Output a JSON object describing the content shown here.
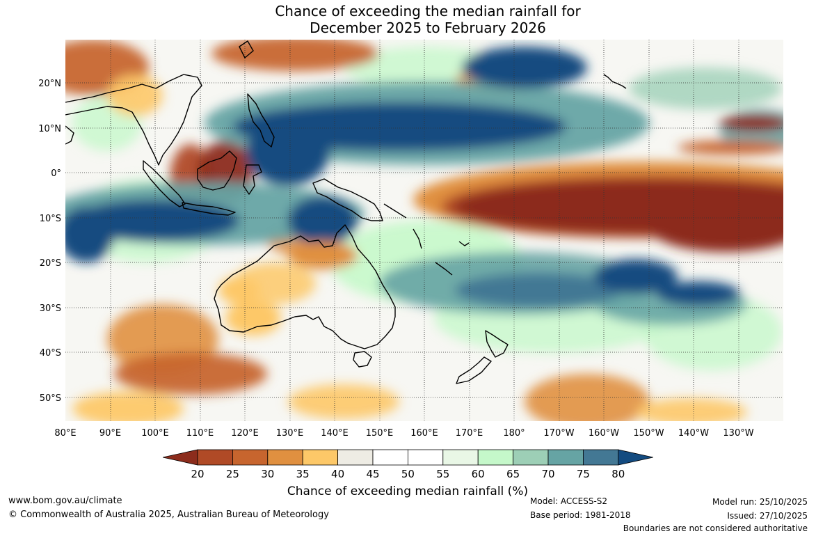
{
  "title": {
    "line1": "Chance of exceeding the median rainfall for",
    "line2": "December 2025 to February 2026"
  },
  "map": {
    "lon_range": [
      80,
      240
    ],
    "lat_range": [
      -55,
      30
    ],
    "lat_ticks": [
      "20°N",
      "10°N",
      "0°",
      "10°S",
      "20°S",
      "30°S",
      "40°S",
      "50°S"
    ],
    "lat_values": [
      20,
      10,
      0,
      -10,
      -20,
      -30,
      -40,
      -50
    ],
    "lon_ticks": [
      "80°E",
      "90°E",
      "100°E",
      "110°E",
      "120°E",
      "130°E",
      "140°E",
      "150°E",
      "160°E",
      "170°E",
      "180°",
      "170°W",
      "160°W",
      "150°W",
      "140°W",
      "130°W"
    ],
    "lon_values": [
      80,
      90,
      100,
      110,
      120,
      130,
      140,
      150,
      160,
      170,
      180,
      190,
      200,
      210,
      220,
      230
    ],
    "grid": "dotted",
    "regions": [
      {
        "name": "equatorial-pacific-dry",
        "category": 20,
        "lon": [
          155,
          240
        ],
        "lat": [
          -16,
          4
        ]
      },
      {
        "name": "north-pacific-wet-band",
        "category": 80,
        "lon": [
          125,
          200
        ],
        "lat": [
          3,
          18
        ]
      },
      {
        "name": "maritime-continent-wet",
        "category": 80,
        "lon": [
          80,
          155
        ],
        "lat": [
          -13,
          2
        ]
      },
      {
        "name": "south-pacific-wet-band",
        "category": 75,
        "lon": [
          150,
          225
        ],
        "lat": [
          -32,
          -15
        ]
      },
      {
        "name": "borneo-dry",
        "category": 25,
        "lon": [
          108,
          120
        ],
        "lat": [
          -4,
          6
        ]
      },
      {
        "name": "north-australia-dry",
        "category": 35,
        "lon": [
          120,
          145
        ],
        "lat": [
          -18,
          -12
        ]
      },
      {
        "name": "southern-indian-ocean-dry",
        "category": 25,
        "lon": [
          85,
          120
        ],
        "lat": [
          -52,
          -38
        ]
      },
      {
        "name": "southeast-pacific-dry",
        "category": 30,
        "lon": [
          185,
          230
        ],
        "lat": [
          -55,
          -40
        ]
      }
    ]
  },
  "colorbar": {
    "labels": [
      "20",
      "25",
      "30",
      "35",
      "40",
      "45",
      "50",
      "55",
      "60",
      "65",
      "70",
      "75",
      "80"
    ],
    "colors": [
      "#8c2c1c",
      "#b04a26",
      "#c7652e",
      "#e09040",
      "#fdc868",
      "#eeece4",
      "#ffffff",
      "#ffffff",
      "#e9f7e6",
      "#c5f8ca",
      "#9dcfb6",
      "#66a4a4",
      "#437894",
      "#134b80"
    ],
    "title": "Chance of exceeding median rainfall (%)"
  },
  "footer": {
    "website": "www.bom.gov.au/climate",
    "copyright": "© Commonwealth of Australia 2025, Australian Bureau of Meteorology",
    "model": "Model: ACCESS-S2",
    "base_period": "Base period: 1981-2018",
    "model_run": "Model run: 25/10/2025",
    "issued": "Issued: 27/10/2025",
    "disclaimer": "Boundaries are not considered authoritative"
  }
}
